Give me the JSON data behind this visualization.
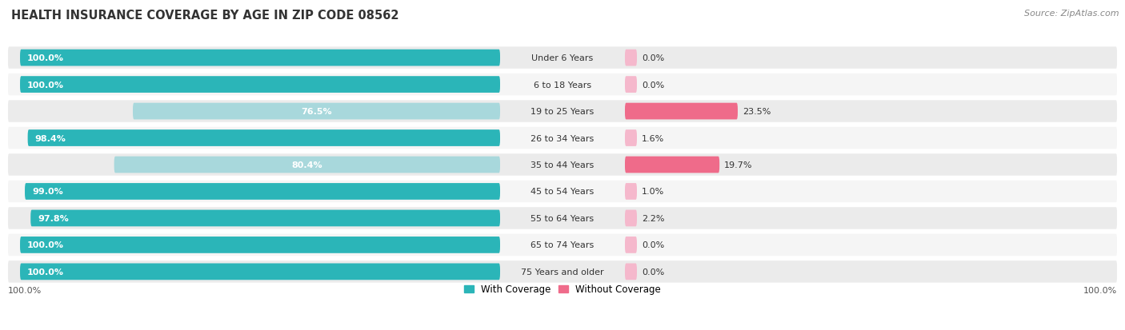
{
  "title": "HEALTH INSURANCE COVERAGE BY AGE IN ZIP CODE 08562",
  "source": "Source: ZipAtlas.com",
  "categories": [
    "Under 6 Years",
    "6 to 18 Years",
    "19 to 25 Years",
    "26 to 34 Years",
    "35 to 44 Years",
    "45 to 54 Years",
    "55 to 64 Years",
    "65 to 74 Years",
    "75 Years and older"
  ],
  "with_coverage": [
    100.0,
    100.0,
    76.5,
    98.4,
    80.4,
    99.0,
    97.8,
    100.0,
    100.0
  ],
  "without_coverage": [
    0.0,
    0.0,
    23.5,
    1.6,
    19.7,
    1.0,
    2.2,
    0.0,
    0.0
  ],
  "color_with_full": "#2BB5B8",
  "color_with_light": "#A8D8DC",
  "color_without_full": "#EF6B8A",
  "color_without_light": "#F5B8CC",
  "row_bg_even": "#EBEBEB",
  "row_bg_odd": "#F5F5F5",
  "title_fontsize": 10.5,
  "source_fontsize": 8,
  "label_fontsize": 8,
  "bar_label_fontsize": 8,
  "legend_fontsize": 8.5,
  "axis_label_fontsize": 8
}
